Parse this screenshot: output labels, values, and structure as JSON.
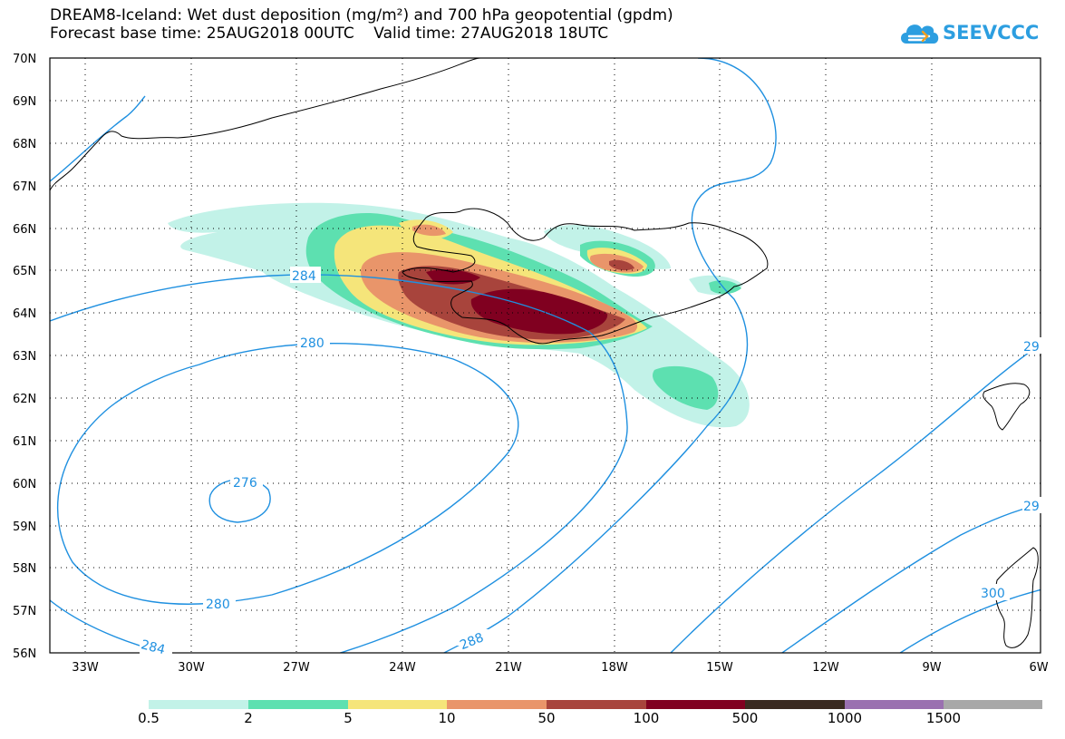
{
  "title": {
    "line1": "DREAM8-Iceland: Wet dust deposition (mg/m²) and 700 hPa geopotential (gpdm)",
    "line2": "Forecast base time: 25AUG2018 00UTC    Valid time: 27AUG2018 18UTC"
  },
  "logo": {
    "text": "SEEVCCC",
    "icon": "cloud-icon"
  },
  "axes": {
    "lat_labels": [
      "70N",
      "69N",
      "68N",
      "67N",
      "66N",
      "65N",
      "64N",
      "63N",
      "62N",
      "61N",
      "60N",
      "59N",
      "58N",
      "57N",
      "56N"
    ],
    "lon_labels": [
      "33W",
      "30W",
      "27W",
      "24W",
      "21W",
      "18W",
      "15W",
      "12W",
      "9W",
      "6W"
    ]
  },
  "contour_labels": [
    "284",
    "280",
    "276",
    "280",
    "284",
    "288",
    "29",
    "29",
    "300"
  ],
  "legend": {
    "labels": [
      "0.5",
      "2",
      "5",
      "10",
      "50",
      "100",
      "500",
      "1000",
      "1500"
    ],
    "colors": [
      "#c2f2e8",
      "#5de0b0",
      "#f5e57a",
      "#e9956a",
      "#a8443c",
      "#800020",
      "#3a2a20",
      "#9a70b0",
      "#a8a8a8"
    ]
  },
  "colors": {
    "contour": "#1f90e0",
    "coast": "#000000"
  }
}
